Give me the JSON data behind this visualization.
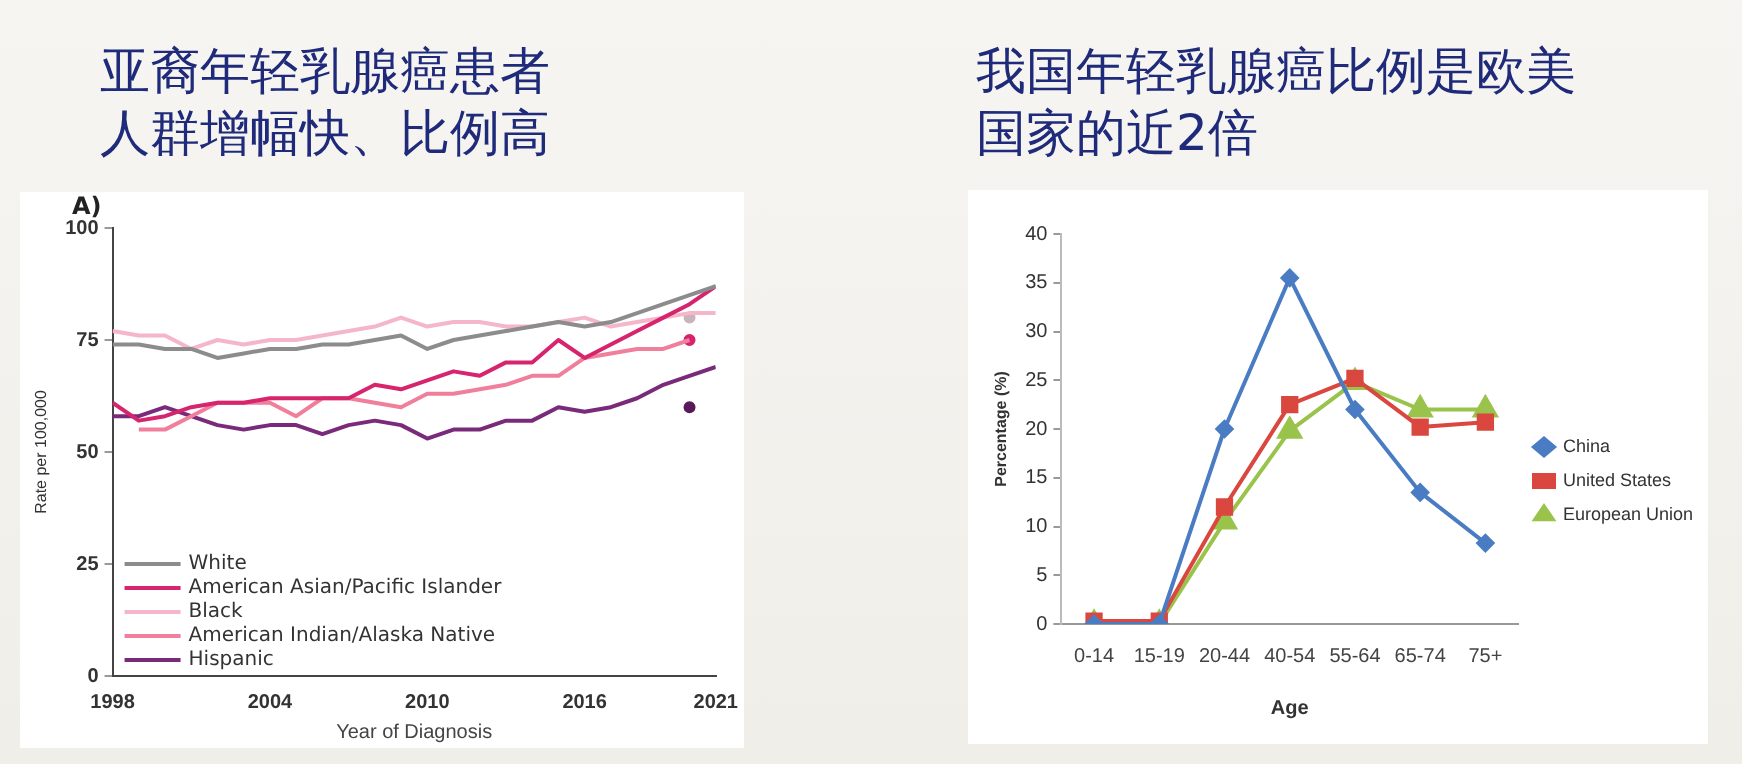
{
  "chart_data": [
    {
      "type": "line",
      "title": "亚裔年轻乳腺癌患者人群增幅快、比例高",
      "annotations": [
        "A)"
      ],
      "xlabel": "Year of Diagnosis",
      "ylabel": "Rate per 100,000",
      "x": [
        1998,
        1999,
        2000,
        2001,
        2002,
        2003,
        2004,
        2005,
        2006,
        2007,
        2008,
        2009,
        2010,
        2011,
        2012,
        2013,
        2014,
        2015,
        2016,
        2017,
        2018,
        2019,
        2020,
        2021
      ],
      "xlim": [
        1998,
        2021
      ],
      "xticks": [
        1998,
        2004,
        2010,
        2016,
        2021
      ],
      "ylim": [
        0,
        100
      ],
      "yticks": [
        0,
        25,
        50,
        75,
        100
      ],
      "grid": false,
      "legend": "bottom left",
      "marker": "none",
      "series": [
        {
          "name": "White",
          "color": "#8c8c8c",
          "values": [
            74,
            74,
            73,
            73,
            71,
            72,
            73,
            73,
            74,
            74,
            75,
            76,
            73,
            75,
            76,
            77,
            78,
            79,
            78,
            79,
            81,
            83,
            85,
            87
          ]
        },
        {
          "name": "American Asian/Pacific Islander",
          "color": "#d6246e",
          "values": [
            61,
            57,
            58,
            60,
            61,
            61,
            62,
            62,
            62,
            62,
            65,
            64,
            66,
            68,
            67,
            70,
            70,
            75,
            71,
            74,
            77,
            80,
            83,
            87
          ]
        },
        {
          "name": "Black",
          "color": "#f4b6c8",
          "values": [
            77,
            76,
            76,
            73,
            75,
            74,
            75,
            75,
            76,
            77,
            78,
            80,
            78,
            79,
            79,
            78,
            78,
            79,
            80,
            78,
            79,
            80,
            81,
            81
          ]
        },
        {
          "name": "American Indian/Alaska Native",
          "color": "#f07f9c",
          "values": [
            null,
            55,
            55,
            58,
            61,
            61,
            61,
            58,
            62,
            62,
            61,
            60,
            63,
            63,
            64,
            65,
            67,
            67,
            71,
            72,
            73,
            73,
            75,
            null
          ]
        },
        {
          "name": "Hispanic",
          "color": "#7a2a7a",
          "values": [
            58,
            58,
            60,
            58,
            56,
            55,
            56,
            56,
            54,
            56,
            57,
            56,
            53,
            55,
            55,
            57,
            57,
            60,
            59,
            60,
            62,
            65,
            67,
            69
          ]
        },
        {
          "type": "scatter",
          "color": "#c8b4bc",
          "marker": "circle",
          "values": [
            null,
            null,
            null,
            null,
            null,
            null,
            null,
            null,
            null,
            null,
            null,
            null,
            null,
            null,
            null,
            null,
            null,
            null,
            null,
            null,
            null,
            null,
            80,
            null
          ]
        },
        {
          "type": "scatter",
          "color": "#d6246e",
          "marker": "circle",
          "values": [
            null,
            null,
            null,
            null,
            null,
            null,
            null,
            null,
            null,
            null,
            null,
            null,
            null,
            null,
            null,
            null,
            null,
            null,
            null,
            null,
            null,
            null,
            75,
            null
          ]
        },
        {
          "type": "scatter",
          "color": "#5a1a5a",
          "marker": "circle",
          "values": [
            null,
            null,
            null,
            null,
            null,
            null,
            null,
            null,
            null,
            null,
            null,
            null,
            null,
            null,
            null,
            null,
            null,
            null,
            null,
            null,
            null,
            null,
            60,
            null
          ]
        }
      ]
    },
    {
      "type": "line",
      "title": "我国年轻乳腺癌比例是欧美国家的近2倍",
      "xlabel": "Age",
      "ylabel": "Percentage (%)",
      "categories": [
        "0-14",
        "15-19",
        "20-44",
        "40-54",
        "55-64",
        "65-74",
        "75+"
      ],
      "ylim": [
        0,
        40
      ],
      "yticks": [
        0,
        5,
        10,
        15,
        20,
        25,
        30,
        35,
        40
      ],
      "grid": false,
      "legend": "right",
      "series": [
        {
          "name": "China",
          "color": "#4a7cc4",
          "marker": "diamond",
          "values": [
            0,
            0,
            20,
            35.5,
            22,
            13.5,
            8.3
          ]
        },
        {
          "name": "United States",
          "color": "#d9473f",
          "marker": "square",
          "values": [
            0.3,
            0.3,
            12,
            22.5,
            25.2,
            20.2,
            20.7
          ]
        },
        {
          "name": "European Union",
          "color": "#99c34a",
          "marker": "triangle",
          "values": [
            0,
            0,
            10.5,
            19.8,
            24.8,
            22,
            22
          ]
        }
      ]
    }
  ]
}
